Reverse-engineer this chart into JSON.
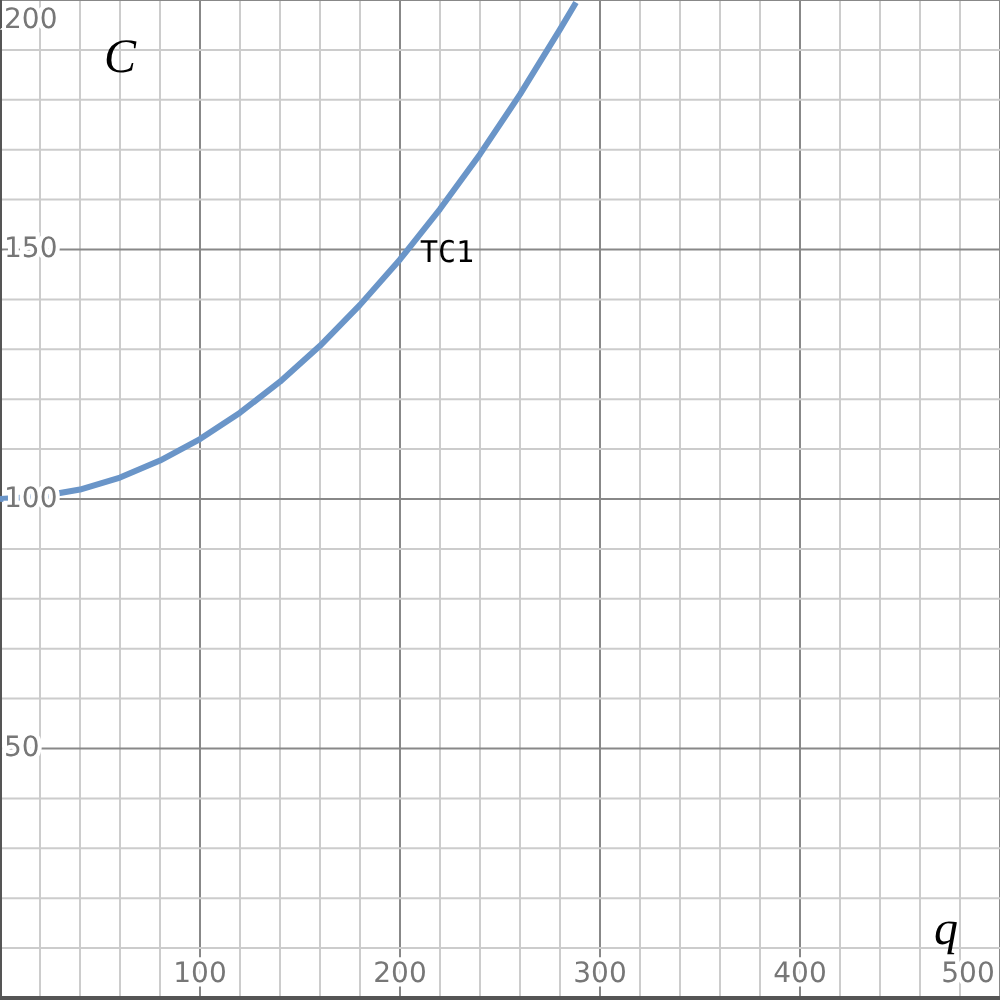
{
  "chart_data": {
    "type": "line",
    "xlabel": "q",
    "ylabel": "C",
    "x": [
      0,
      20,
      40,
      60,
      80,
      100,
      120,
      140,
      160,
      180,
      200,
      220,
      240,
      260,
      280,
      288
    ],
    "series": [
      {
        "color": "#6a95c8",
        "values": [
          100,
          100.5,
          101.9,
          104.3,
          107.7,
          112,
          117.3,
          123.5,
          130.7,
          138.9,
          148,
          158.1,
          169.1,
          181.1,
          194.1,
          199.5
        ]
      }
    ],
    "annotations": [
      "TC1"
    ],
    "xlim": [
      0,
      500
    ],
    "ylim": [
      0,
      200
    ],
    "xticks": [
      {
        "value": 20,
        "label": null
      },
      {
        "value": 40,
        "label": null
      },
      {
        "value": 60,
        "label": null
      },
      {
        "value": 80,
        "label": null
      },
      100,
      {
        "value": 120,
        "label": null
      },
      {
        "value": 140,
        "label": null
      },
      {
        "value": 160,
        "label": null
      },
      {
        "value": 180,
        "label": null
      },
      200,
      {
        "value": 220,
        "label": null
      },
      {
        "value": 240,
        "label": null
      },
      {
        "value": 260,
        "label": null
      },
      {
        "value": 280,
        "label": null
      },
      300,
      {
        "value": 320,
        "label": null
      },
      {
        "value": 340,
        "label": null
      },
      {
        "value": 360,
        "label": null
      },
      {
        "value": 380,
        "label": null
      },
      400,
      {
        "value": 420,
        "label": null
      },
      {
        "value": 440,
        "label": null
      },
      {
        "value": 460,
        "label": null
      },
      {
        "value": 480,
        "label": null
      },
      500
    ],
    "yticks": [
      {
        "value": 10,
        "label": null
      },
      {
        "value": 20,
        "label": null
      },
      {
        "value": 30,
        "label": null
      },
      {
        "value": 40,
        "label": null
      },
      50,
      {
        "value": 60,
        "label": null
      },
      {
        "value": 70,
        "label": null
      },
      {
        "value": 80,
        "label": null
      },
      {
        "value": 90,
        "label": null
      },
      100,
      {
        "value": 110,
        "label": null
      },
      {
        "value": 120,
        "label": null
      },
      {
        "value": 130,
        "label": null
      },
      {
        "value": 140,
        "label": null
      },
      150,
      {
        "value": 160,
        "label": null
      },
      {
        "value": 170,
        "label": null
      },
      {
        "value": 180,
        "label": null
      },
      {
        "value": 190,
        "label": null
      },
      200
    ],
    "grid": true,
    "marker": "none",
    "line_style": "solid"
  }
}
